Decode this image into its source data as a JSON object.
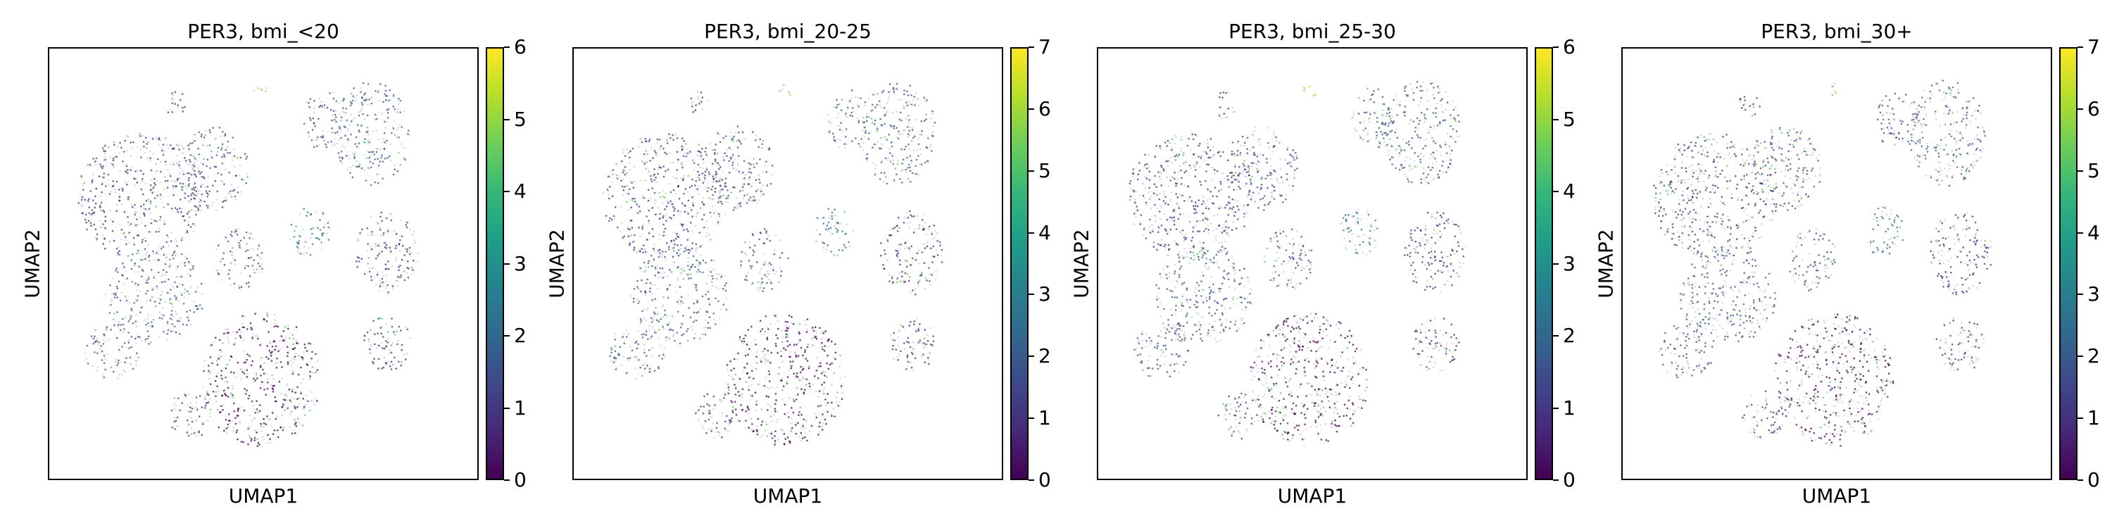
{
  "chart_data": [
    {
      "type": "scatter",
      "title": "PER3, bmi_<20",
      "xlabel": "UMAP1",
      "ylabel": "UMAP2",
      "colorbar": {
        "min": 0,
        "max": 6,
        "ticks": [
          "0",
          "1",
          "2",
          "3",
          "4",
          "5",
          "6"
        ]
      },
      "colormap": "viridis"
    },
    {
      "type": "scatter",
      "title": "PER3, bmi_20-25",
      "xlabel": "UMAP1",
      "ylabel": "UMAP2",
      "colorbar": {
        "min": 0,
        "max": 7,
        "ticks": [
          "0",
          "1",
          "2",
          "3",
          "4",
          "5",
          "6",
          "7"
        ]
      },
      "colormap": "viridis"
    },
    {
      "type": "scatter",
      "title": "PER3, bmi_25-30",
      "xlabel": "UMAP1",
      "ylabel": "UMAP2",
      "colorbar": {
        "min": 0,
        "max": 6,
        "ticks": [
          "0",
          "1",
          "2",
          "3",
          "4",
          "5",
          "6"
        ]
      },
      "colormap": "viridis"
    },
    {
      "type": "scatter",
      "title": "PER3, bmi_30+",
      "xlabel": "UMAP1",
      "ylabel": "UMAP2",
      "colorbar": {
        "min": 0,
        "max": 7,
        "ticks": [
          "0",
          "1",
          "2",
          "3",
          "4",
          "5",
          "6",
          "7"
        ]
      },
      "colormap": "viridis"
    }
  ]
}
